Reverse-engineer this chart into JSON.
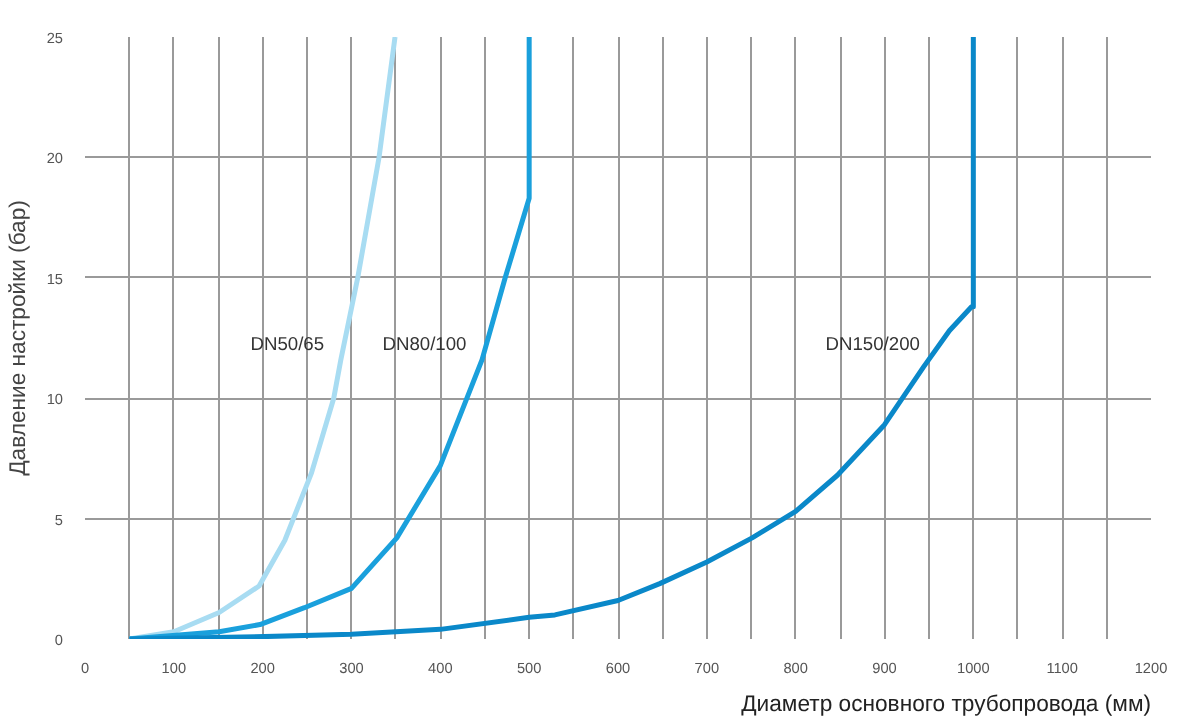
{
  "chart_data": {
    "type": "line",
    "xlabel": "Диаметр основного трубопровода (мм)",
    "ylabel": "Давление настройки (бар)",
    "series": [
      {
        "name": "DN50/65",
        "color": "#a8dcf2",
        "x": [
          50,
          100,
          151,
          196,
          225,
          255,
          280,
          288,
          307,
          331,
          349
        ],
        "values": [
          0,
          0.3,
          1.1,
          2.2,
          4.1,
          6.9,
          10,
          11.6,
          15,
          20,
          25
        ]
      },
      {
        "name": "DN80/100",
        "color": "#1aa0dc",
        "x": [
          50,
          151,
          197,
          247,
          300,
          351,
          400,
          447,
          473,
          500,
          500
        ],
        "values": [
          0,
          0.3,
          0.6,
          1.3,
          2.1,
          4.2,
          7.2,
          11.6,
          15,
          18.3,
          25
        ]
      },
      {
        "name": "DN150/200",
        "color": "#0a88c9",
        "x": [
          50,
          202,
          300,
          400,
          500,
          529,
          600,
          647,
          700,
          751,
          800,
          847,
          900,
          944,
          973,
          998,
          1000,
          1000
        ],
        "values": [
          0,
          0.1,
          0.2,
          0.4,
          0.9,
          1.0,
          1.6,
          2.3,
          3.2,
          4.2,
          5.3,
          6.8,
          8.9,
          11.3,
          12.8,
          13.8,
          13.8,
          25
        ]
      }
    ],
    "xlim": [
      0,
      1200
    ],
    "ylim": [
      0,
      25
    ],
    "xticks": [
      0,
      {
        "value": 50,
        "label": null
      },
      100,
      {
        "value": 150,
        "label": null
      },
      200,
      {
        "value": 250,
        "label": null
      },
      300,
      {
        "value": 350,
        "label": null
      },
      400,
      {
        "value": 450,
        "label": null
      },
      500,
      {
        "value": 550,
        "label": null
      },
      600,
      {
        "value": 650,
        "label": null
      },
      700,
      {
        "value": 750,
        "label": null
      },
      800,
      {
        "value": 850,
        "label": null
      },
      900,
      {
        "value": 950,
        "label": null
      },
      1000,
      {
        "value": 1050,
        "label": null
      },
      1100,
      {
        "value": 1150,
        "label": null
      },
      1200
    ],
    "yticks": [
      0,
      5,
      10,
      15,
      20,
      25
    ],
    "grid": true,
    "legend": false,
    "marker": "none",
    "line_style": "solid"
  }
}
